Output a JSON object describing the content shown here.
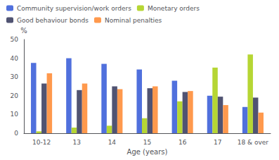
{
  "chart_data": {
    "type": "bar",
    "xlabel": "Age (years)",
    "ylabel": "%",
    "categories": [
      "10-12",
      "13",
      "14",
      "15",
      "16",
      "17",
      "18 & over"
    ],
    "series": [
      {
        "name": "Community supervision/work orders",
        "values": [
          37.5,
          40,
          37,
          34,
          28,
          20,
          14
        ]
      },
      {
        "name": "Monetary orders",
        "values": [
          1,
          3,
          4,
          8,
          17,
          35,
          42
        ]
      },
      {
        "name": "Good behaviour bonds",
        "values": [
          26.5,
          23,
          25,
          24,
          22,
          19.5,
          19
        ]
      },
      {
        "name": "Nominal penalties",
        "values": [
          32,
          26.5,
          23.5,
          25,
          22.5,
          15,
          11
        ]
      }
    ],
    "ylim": [
      0,
      50
    ],
    "yticks": [
      0,
      10,
      20,
      30,
      40,
      50
    ],
    "grid": false,
    "legend": "upper left"
  }
}
